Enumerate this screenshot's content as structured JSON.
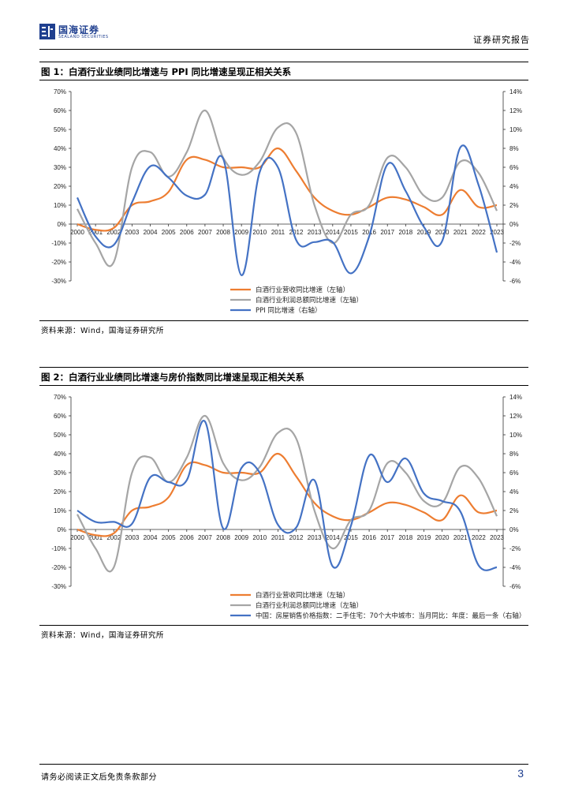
{
  "header": {
    "logo_cn": "国海证券",
    "logo_en": "SEALAND SECURITIES",
    "report_type": "证券研究报告"
  },
  "figures": [
    {
      "title": "图 1：白酒行业业绩同比增速与 PPI 同比增速呈现正相关关系",
      "source": "资料来源：Wind，国海证券研究所"
    },
    {
      "title": "图 2：白酒行业业绩同比增速与房价指数同比增速呈现正相关关系",
      "source": "资料来源：Wind，国海证券研究所"
    }
  ],
  "footer": {
    "note": "请务必阅读正文后免责条款部分",
    "page": "3"
  },
  "chart_data": [
    {
      "type": "line",
      "title": "图 1：白酒行业业绩同比增速与 PPI 同比增速呈现正相关关系",
      "categories": [
        "2000",
        "2001",
        "2002",
        "2003",
        "2004",
        "2005",
        "2006",
        "2007",
        "2008",
        "2009",
        "2010",
        "2011",
        "2012",
        "2013",
        "2014",
        "2015",
        "2016",
        "2017",
        "2018",
        "2019",
        "2020",
        "2021",
        "2022",
        "2023"
      ],
      "y_left_ticks": [
        "70%",
        "60%",
        "50%",
        "40%",
        "30%",
        "20%",
        "10%",
        "0%",
        "-10%",
        "-20%",
        "-30%"
      ],
      "y_right_ticks": [
        "14%",
        "12%",
        "10%",
        "8%",
        "6%",
        "4%",
        "2%",
        "0%",
        "-2%",
        "-4%",
        "-6%"
      ],
      "ylim_left": [
        -30,
        70
      ],
      "ylim_right": [
        -6,
        14
      ],
      "series": [
        {
          "name": "白酒行业营收同比增速（左轴）",
          "axis": "left",
          "color": "#ed7d31",
          "values": [
            0,
            -3,
            -2,
            10,
            12,
            17,
            34,
            34,
            30,
            30,
            30,
            40,
            28,
            14,
            7,
            5,
            9,
            14,
            13,
            9,
            5,
            18,
            9,
            10
          ]
        },
        {
          "name": "白酒行业利润总额同比增速（左轴）",
          "axis": "left",
          "color": "#a5a5a5",
          "values": [
            8,
            -10,
            -20,
            30,
            38,
            25,
            38,
            60,
            35,
            26,
            33,
            51,
            48,
            10,
            -10,
            5,
            10,
            35,
            30,
            15,
            14,
            33,
            27,
            7
          ]
        },
        {
          "name": "PPI 同比增速（右轴）",
          "axis": "right",
          "color": "#4472c4",
          "values": [
            2.8,
            -1.3,
            -2.2,
            2.3,
            6.1,
            4.9,
            3.0,
            3.1,
            6.9,
            -5.4,
            5.5,
            6.0,
            -1.7,
            -1.9,
            -1.9,
            -5.2,
            -1.3,
            6.3,
            3.5,
            -0.3,
            -1.8,
            8.1,
            4.1,
            -3.0
          ]
        }
      ]
    },
    {
      "type": "line",
      "title": "图 2：白酒行业业绩同比增速与房价指数同比增速呈现正相关关系",
      "categories": [
        "2000",
        "2001",
        "2002",
        "2003",
        "2004",
        "2005",
        "2006",
        "2007",
        "2008",
        "2009",
        "2010",
        "2011",
        "2012",
        "2013",
        "2014",
        "2015",
        "2016",
        "2017",
        "2018",
        "2019",
        "2020",
        "2021",
        "2022",
        "2023"
      ],
      "y_left_ticks": [
        "70%",
        "60%",
        "50%",
        "40%",
        "30%",
        "20%",
        "10%",
        "0%",
        "-10%",
        "-20%",
        "-30%"
      ],
      "y_right_ticks": [
        "14%",
        "12%",
        "10%",
        "8%",
        "6%",
        "4%",
        "2%",
        "0%",
        "-2%",
        "-4%",
        "-6%"
      ],
      "ylim_left": [
        -30,
        70
      ],
      "ylim_right": [
        -6,
        14
      ],
      "series": [
        {
          "name": "白酒行业营收同比增速（左轴）",
          "axis": "left",
          "color": "#ed7d31",
          "values": [
            0,
            -3,
            -2,
            10,
            12,
            17,
            34,
            34,
            30,
            30,
            30,
            40,
            28,
            14,
            7,
            5,
            9,
            14,
            13,
            9,
            5,
            18,
            9,
            10
          ]
        },
        {
          "name": "白酒行业利润总额同比增速（左轴）",
          "axis": "left",
          "color": "#a5a5a5",
          "values": [
            8,
            -10,
            -20,
            30,
            38,
            25,
            38,
            60,
            35,
            26,
            33,
            51,
            48,
            10,
            -10,
            5,
            10,
            35,
            30,
            15,
            14,
            33,
            27,
            7
          ]
        },
        {
          "name": "中国：房屋销售价格指数：二手住宅：70个大中城市：当月同比：年度：最后一条（右轴）",
          "axis": "right",
          "color": "#4472c4",
          "values": [
            2.0,
            0.8,
            0.8,
            0.6,
            5.5,
            5.0,
            5.2,
            11.4,
            0.1,
            6.5,
            6.0,
            0.5,
            0.2,
            5.2,
            -3.9,
            0.4,
            7.8,
            5.0,
            7.5,
            3.8,
            3.0,
            1.9,
            -3.8,
            -4.0
          ]
        }
      ]
    }
  ]
}
